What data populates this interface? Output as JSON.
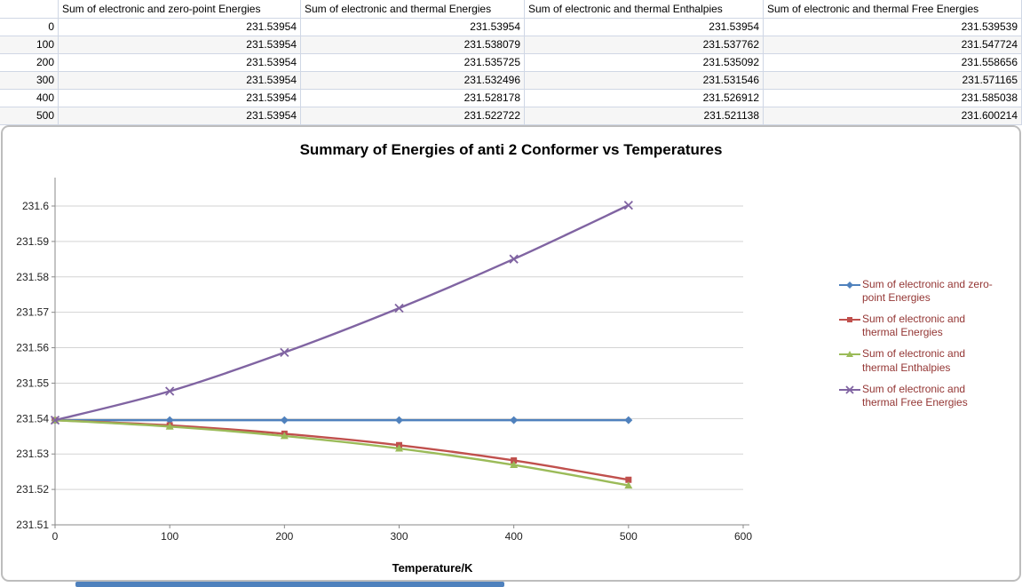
{
  "table": {
    "headers": [
      "",
      "Sum of electronic and zero-point Energies",
      "Sum of electronic and thermal Energies",
      "Sum of electronic and thermal Enthalpies",
      "Sum of electronic and thermal Free Energies"
    ],
    "rows": [
      [
        "0",
        "231.53954",
        "231.53954",
        "231.53954",
        "231.539539"
      ],
      [
        "100",
        "231.53954",
        "231.538079",
        "231.537762",
        "231.547724"
      ],
      [
        "200",
        "231.53954",
        "231.535725",
        "231.535092",
        "231.558656"
      ],
      [
        "300",
        "231.53954",
        "231.532496",
        "231.531546",
        "231.571165"
      ],
      [
        "400",
        "231.53954",
        "231.528178",
        "231.526912",
        "231.585038"
      ],
      [
        "500",
        "231.53954",
        "231.522722",
        "231.521138",
        "231.600214"
      ]
    ]
  },
  "chart_data": {
    "type": "line",
    "title": "Summary of Energies of anti 2 Conformer vs Temperatures",
    "xlabel": "Temperature/K",
    "ylabel": "",
    "x": [
      0,
      100,
      200,
      300,
      400,
      500
    ],
    "series": [
      {
        "name": "Sum of electronic and zero-point Energies",
        "color": "#4F81BD",
        "marker": "diamond",
        "values": [
          231.53954,
          231.53954,
          231.53954,
          231.53954,
          231.53954,
          231.53954
        ]
      },
      {
        "name": "Sum of electronic and thermal Energies",
        "color": "#C0504D",
        "marker": "square",
        "values": [
          231.53954,
          231.538079,
          231.535725,
          231.532496,
          231.528178,
          231.522722
        ]
      },
      {
        "name": "Sum of electronic and thermal Enthalpies",
        "color": "#9BBB59",
        "marker": "triangle",
        "values": [
          231.53954,
          231.537762,
          231.535092,
          231.531546,
          231.526912,
          231.521138
        ]
      },
      {
        "name": "Sum of electronic and thermal Free Energies",
        "color": "#8064A2",
        "marker": "x",
        "values": [
          231.539539,
          231.547724,
          231.558656,
          231.571165,
          231.585038,
          231.600214
        ]
      }
    ],
    "xlim": [
      0,
      600
    ],
    "ylim": [
      231.51,
      231.6
    ],
    "x_ticks": [
      "0",
      "100",
      "200",
      "300",
      "400",
      "500",
      "600"
    ],
    "y_ticks": [
      "231.51",
      "231.52",
      "231.53",
      "231.54",
      "231.55",
      "231.56",
      "231.57",
      "231.58",
      "231.59",
      "231.6"
    ],
    "grid": "horizontal",
    "legend_position": "right",
    "colors": {
      "gridline": "#D3D3D3",
      "axis": "#898989",
      "tick_label": "#1F1F1F",
      "legend_text": "#943634"
    }
  }
}
